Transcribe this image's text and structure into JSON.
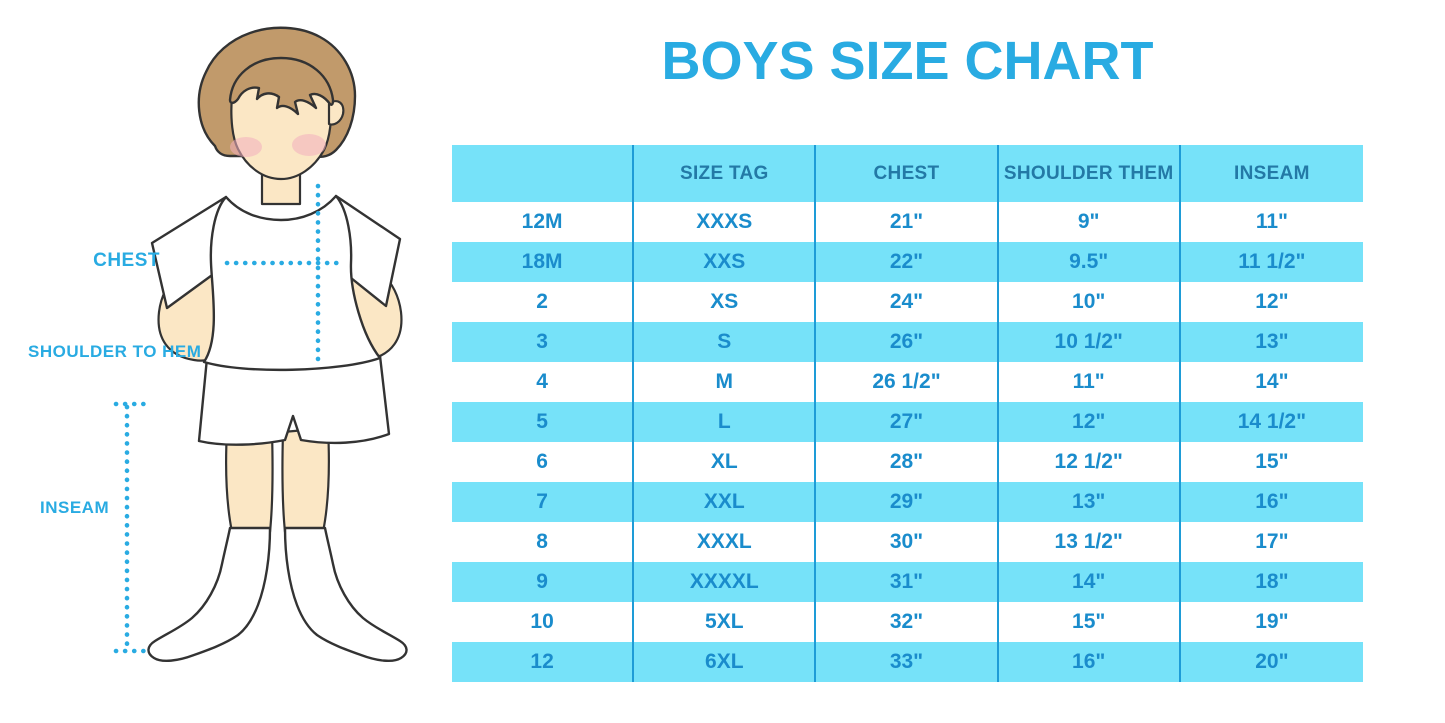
{
  "title": "BOYS SIZE CHART",
  "colors": {
    "accent_blue": "#29ABE2",
    "band_cyan": "#76E2F9",
    "header_text": "#2379A6",
    "cell_text": "#1A8CCC",
    "divider": "#1E9CD7",
    "hair_brown": "#C19A6B",
    "skin": "#FBE7C5",
    "blush_pink": "#F3AEBE",
    "outline": "#333333"
  },
  "figure": {
    "labels": {
      "chest": "CHEST",
      "shoulder_to_hem": "SHOULDER TO HEM",
      "inseam": "INSEAM"
    }
  },
  "chart_data": {
    "type": "table",
    "title": "BOYS SIZE CHART",
    "columns": [
      "",
      "SIZE TAG",
      "CHEST",
      "SHOULDER THEM",
      "INSEAM"
    ],
    "rows": [
      [
        "12M",
        "XXXS",
        "21\"",
        "9\"",
        "11\""
      ],
      [
        "18M",
        "XXS",
        "22\"",
        "9.5\"",
        "11 1/2\""
      ],
      [
        "2",
        "XS",
        "24\"",
        "10\"",
        "12\""
      ],
      [
        "3",
        "S",
        "26\"",
        "10 1/2\"",
        "13\""
      ],
      [
        "4",
        "M",
        "26 1/2\"",
        "11\"",
        "14\""
      ],
      [
        "5",
        "L",
        "27\"",
        "12\"",
        "14 1/2\""
      ],
      [
        "6",
        "XL",
        "28\"",
        "12 1/2\"",
        "15\""
      ],
      [
        "7",
        "XXL",
        "29\"",
        "13\"",
        "16\""
      ],
      [
        "8",
        "XXXL",
        "30\"",
        "13 1/2\"",
        "17\""
      ],
      [
        "9",
        "XXXXL",
        "31\"",
        "14\"",
        "18\""
      ],
      [
        "10",
        "5XL",
        "32\"",
        "15\"",
        "19\""
      ],
      [
        "12",
        "6XL",
        "33\"",
        "16\"",
        "20\""
      ]
    ],
    "layout": {
      "row_banding": "alternating white and light cyan, first data row white",
      "header_background": "light cyan",
      "column_dividers": true,
      "outer_border": false
    }
  }
}
